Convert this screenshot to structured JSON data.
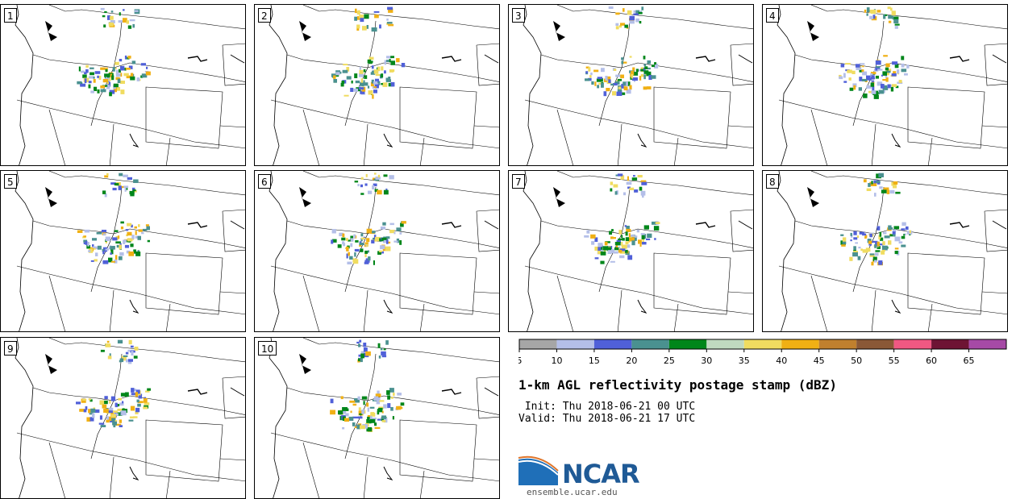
{
  "panels": [
    {
      "label": "1"
    },
    {
      "label": "2"
    },
    {
      "label": "3"
    },
    {
      "label": "4"
    },
    {
      "label": "5"
    },
    {
      "label": "6"
    },
    {
      "label": "7"
    },
    {
      "label": "8"
    },
    {
      "label": "9"
    },
    {
      "label": "10"
    }
  ],
  "colorbar": {
    "ticks": [
      "5",
      "10",
      "15",
      "20",
      "25",
      "30",
      "35",
      "40",
      "45",
      "50",
      "55",
      "60",
      "65"
    ],
    "colors": [
      "#a6a6a6",
      "#b4bfe8",
      "#5060d8",
      "#4a9190",
      "#00861a",
      "#c0d9c0",
      "#f0dc60",
      "#f0b014",
      "#c0802e",
      "#8a5836",
      "#f05882",
      "#6e1434",
      "#a64aa6"
    ]
  },
  "title": "1-km AGL reflectivity postage stamp (dBZ)",
  "init_line": " Init: Thu 2018-06-21 00 UTC",
  "valid_line": "Valid: Thu 2018-06-21 17 UTC",
  "logo": {
    "name": "NCAR",
    "url": "ensemble.ucar.edu"
  }
}
